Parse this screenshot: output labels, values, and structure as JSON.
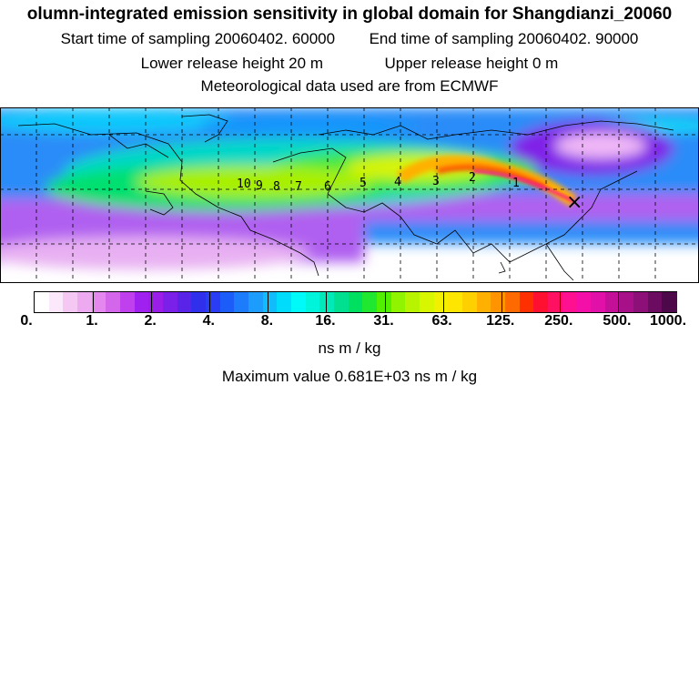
{
  "header": {
    "title": "olumn-integrated emission sensitivity in global domain for Shangdianzi_20060",
    "start_sampling": "Start time of sampling 20060402. 60000",
    "end_sampling": "End time of sampling 20060402. 90000",
    "lower_release": "Lower release height   20 m",
    "upper_release": "Upper release height    0 m",
    "met_data": "Meteorological data used are from ECMWF"
  },
  "map": {
    "day_markers": [
      "1",
      "2",
      "3",
      "4",
      "5",
      "6",
      "7",
      "8",
      "9",
      "10"
    ],
    "receptor_symbol": "×"
  },
  "colorbar": {
    "tick_labels": [
      "0.",
      "1.",
      "2.",
      "4.",
      "8.",
      "16.",
      "31.",
      "63.",
      "125.",
      "250.",
      "500.",
      "1000."
    ],
    "colors": [
      "#ffffff",
      "#fce8fb",
      "#f5c8f4",
      "#eeaaf0",
      "#e488ee",
      "#d466ec",
      "#c040ee",
      "#a020f0",
      "#9a1ee8",
      "#7a20e8",
      "#5a24e8",
      "#3030ec",
      "#2a3cf4",
      "#1c5cf8",
      "#1c7cfb",
      "#1c9cfc",
      "#10bcfc",
      "#00dcfc",
      "#00fafa",
      "#00f4dc",
      "#00eab8",
      "#00e090",
      "#00e060",
      "#20e830",
      "#50f000",
      "#90f400",
      "#b8f400",
      "#d8f600",
      "#f0f000",
      "#ffe600",
      "#ffd000",
      "#ffb000",
      "#ff9400",
      "#ff6a00",
      "#ff3000",
      "#ff1030",
      "#ff1060",
      "#ff1090",
      "#f410a8",
      "#e010a8",
      "#c41098",
      "#a8108a",
      "#8c1078",
      "#6c0c60",
      "#4c0848"
    ],
    "units": "ns m / kg"
  },
  "footer": {
    "max_value": "Maximum value  0.681E+03 ns m / kg"
  }
}
